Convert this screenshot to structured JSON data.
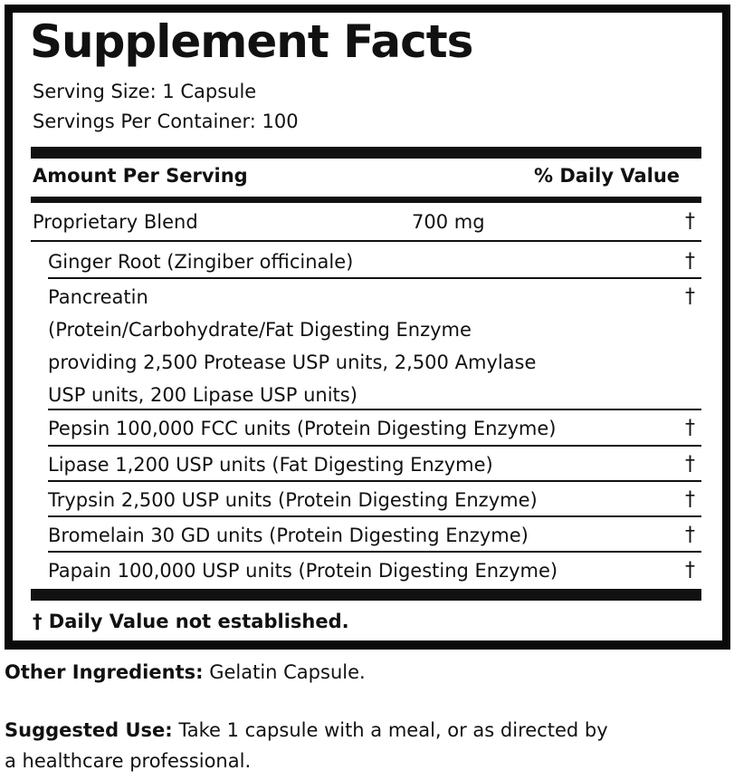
{
  "title": "Supplement Facts",
  "serving_size": "Serving Size: 1 Capsule",
  "servings_per_container": "Servings Per Container: 100",
  "header": {
    "amount": "Amount Per Serving",
    "dv": "% Daily Value"
  },
  "blend": {
    "name": "Proprietary Blend",
    "amount": "700 mg",
    "dv": "†"
  },
  "ingredients": [
    {
      "lines": [
        "Ginger Root (Zingiber officinale)"
      ],
      "dv": "†"
    },
    {
      "lines": [
        "Pancreatin",
        "(Protein/Carbohydrate/Fat Digesting Enzyme",
        "providing 2,500 Protease USP units, 2,500 Amylase",
        "USP units, 200 Lipase USP units)"
      ],
      "dv": "†"
    },
    {
      "lines": [
        "Pepsin 100,000 FCC units (Protein Digesting Enzyme)"
      ],
      "dv": "†"
    },
    {
      "lines": [
        "Lipase 1,200 USP units (Fat Digesting Enzyme)"
      ],
      "dv": "†"
    },
    {
      "lines": [
        "Trypsin 2,500 USP units (Protein Digesting Enzyme)"
      ],
      "dv": "†"
    },
    {
      "lines": [
        "Bromelain 30 GD units (Protein Digesting Enzyme)"
      ],
      "dv": "†"
    },
    {
      "lines": [
        "Papain 100,000 USP units (Protein Digesting Enzyme)"
      ],
      "dv": "†"
    }
  ],
  "footnote": "† Daily Value not established.",
  "other_ingredients": {
    "label": "Other Ingredients:",
    "text": " Gelatin Capsule."
  },
  "suggested_use": {
    "label": "Suggested Use:",
    "line1": " Take 1 capsule with a meal, or as directed by",
    "line2": "a healthcare professional."
  }
}
